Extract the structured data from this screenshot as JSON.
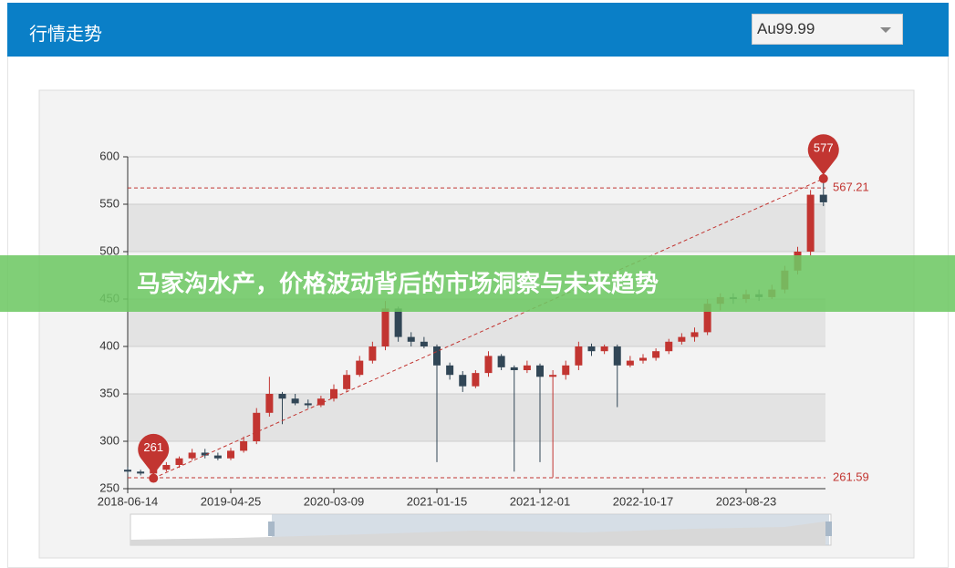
{
  "header": {
    "title": "行情走势",
    "select": "Au99.99"
  },
  "banner": "马家沟水产，价格波动背后的市场洞察与未来趋势",
  "chart_data": {
    "type": "candlestick",
    "categories": [
      "2018-06-14",
      null,
      null,
      null,
      null,
      null,
      null,
      null,
      "2019-04-25",
      null,
      null,
      null,
      null,
      null,
      null,
      null,
      "2020-03-09",
      null,
      null,
      null,
      null,
      null,
      null,
      null,
      "2021-01-15",
      null,
      null,
      null,
      null,
      null,
      null,
      null,
      "2021-12-01",
      null,
      null,
      null,
      null,
      null,
      null,
      null,
      "2022-10-17",
      null,
      null,
      null,
      null,
      null,
      null,
      null,
      "2023-08-23",
      null,
      null,
      null,
      null,
      null,
      null
    ],
    "open": [
      270,
      268,
      266,
      270,
      275,
      282,
      288,
      285,
      282,
      290,
      300,
      330,
      350,
      345,
      340,
      338,
      345,
      355,
      370,
      385,
      400,
      440,
      410,
      405,
      400,
      380,
      370,
      358,
      372,
      390,
      378,
      375,
      380,
      368,
      370,
      380,
      400,
      395,
      400,
      380,
      385,
      388,
      395,
      405,
      410,
      415,
      445,
      452,
      450,
      455,
      452,
      460,
      480,
      500,
      560
    ],
    "high": [
      273,
      270,
      272,
      278,
      284,
      292,
      292,
      288,
      293,
      305,
      335,
      368,
      352,
      350,
      344,
      348,
      360,
      375,
      390,
      405,
      448,
      442,
      415,
      410,
      402,
      383,
      374,
      375,
      395,
      392,
      380,
      385,
      382,
      375,
      385,
      405,
      403,
      402,
      402,
      390,
      392,
      398,
      408,
      414,
      420,
      450,
      456,
      456,
      460,
      460,
      465,
      485,
      505,
      565,
      577
    ],
    "low": [
      265,
      264,
      261,
      268,
      272,
      280,
      282,
      280,
      280,
      288,
      297,
      326,
      318,
      338,
      335,
      336,
      342,
      352,
      368,
      382,
      396,
      405,
      400,
      398,
      278,
      365,
      352,
      356,
      368,
      375,
      268,
      372,
      278,
      262,
      365,
      375,
      390,
      392,
      336,
      378,
      382,
      385,
      392,
      402,
      405,
      412,
      438,
      445,
      446,
      448,
      450,
      456,
      476,
      496,
      548
    ],
    "close": [
      268,
      266,
      270,
      275,
      282,
      288,
      285,
      282,
      290,
      300,
      330,
      350,
      345,
      340,
      338,
      345,
      355,
      370,
      385,
      400,
      440,
      410,
      405,
      400,
      380,
      370,
      358,
      372,
      390,
      378,
      375,
      380,
      368,
      370,
      380,
      400,
      395,
      400,
      380,
      385,
      388,
      395,
      405,
      410,
      415,
      445,
      452,
      450,
      455,
      452,
      460,
      480,
      500,
      560,
      552
    ],
    "up_color": "#c23531",
    "down_color": "#314656",
    "ylim": [
      250,
      600
    ],
    "yticks": [
      250,
      300,
      350,
      400,
      450,
      500,
      550,
      600
    ],
    "mark_points": [
      {
        "value": 577,
        "index": 54
      },
      {
        "value": 261,
        "index": 2
      }
    ],
    "mark_lines": [
      567.21,
      261.59
    ]
  }
}
